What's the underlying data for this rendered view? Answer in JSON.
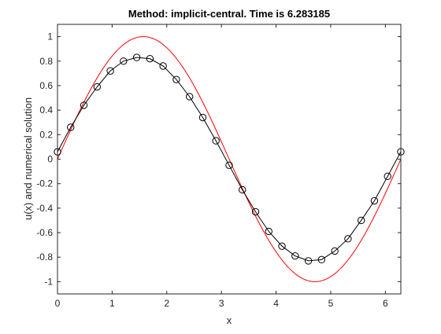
{
  "chart_data": {
    "type": "line",
    "title": "Method: implicit-central. Time is 6.283185",
    "xlabel": "x",
    "ylabel": "u(x) and numerical solution",
    "xlim": [
      0,
      6.283185
    ],
    "ylim": [
      -1.1,
      1.1
    ],
    "x_ticks": [
      0,
      1,
      2,
      3,
      4,
      5,
      6
    ],
    "x_tick_labels": [
      "0",
      "1",
      "2",
      "3",
      "4",
      "5",
      "6"
    ],
    "y_ticks": [
      1,
      0.8,
      0.6,
      0.4,
      0.2,
      0,
      -0.2,
      -0.4,
      -0.6,
      -0.8,
      -1
    ],
    "y_tick_labels": [
      "1",
      "0.8",
      "0.6",
      "0.4",
      "0.2",
      "0",
      "-0.2",
      "-0.4",
      "-0.6",
      "-0.8",
      "-1"
    ],
    "grid": false,
    "series": [
      {
        "color": "#ff0000",
        "marker": "none",
        "style": "line",
        "function": "sin(x)",
        "x": [
          0,
          0.3142,
          0.6283,
          0.9425,
          1.2566,
          1.5708,
          1.885,
          2.1991,
          2.5133,
          2.8274,
          3.1416,
          3.4558,
          3.7699,
          4.0841,
          4.3982,
          4.7124,
          5.0265,
          5.3407,
          5.6549,
          5.969,
          6.2832
        ],
        "values": [
          0,
          0.309,
          0.5878,
          0.809,
          0.9511,
          1.0,
          0.9511,
          0.809,
          0.5878,
          0.309,
          0,
          -0.309,
          -0.5878,
          -0.809,
          -0.9511,
          -1.0,
          -0.9511,
          -0.809,
          -0.5878,
          -0.309,
          0
        ]
      },
      {
        "color": "#000000",
        "marker": "circle",
        "style": "line+marker",
        "x": [
          0,
          0.2416,
          0.4833,
          0.7249,
          0.9666,
          1.2082,
          1.4499,
          1.6915,
          1.9332,
          2.1748,
          2.4165,
          2.6581,
          2.8998,
          3.1414,
          3.383,
          3.6247,
          3.8663,
          4.108,
          4.3496,
          4.5913,
          4.8329,
          5.0746,
          5.3162,
          5.5579,
          5.7995,
          6.0412,
          6.2828
        ],
        "values": [
          0.06,
          0.26,
          0.44,
          0.59,
          0.72,
          0.8,
          0.83,
          0.82,
          0.76,
          0.65,
          0.51,
          0.34,
          0.15,
          -0.05,
          -0.25,
          -0.43,
          -0.59,
          -0.71,
          -0.79,
          -0.83,
          -0.82,
          -0.75,
          -0.65,
          -0.5,
          -0.34,
          -0.14,
          0.06
        ]
      }
    ]
  }
}
